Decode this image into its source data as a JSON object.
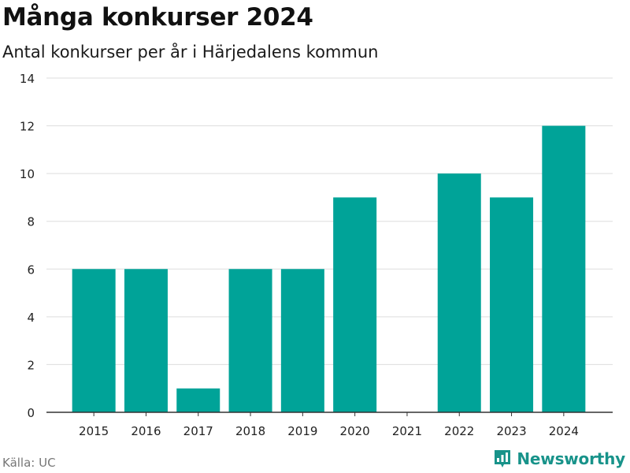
{
  "header": {
    "title": "Många konkurser 2024",
    "subtitle": "Antal konkurser per år i Härjedalens kommun"
  },
  "footer": {
    "source": "Källa: UC",
    "brand_name": "Newsworthy",
    "brand_icon": "newsworthy-logo-icon"
  },
  "colors": {
    "bar": "#00a398",
    "grid": "#dddddd",
    "axis": "#333333",
    "brand": "#18938a"
  },
  "chart_data": {
    "type": "bar",
    "title": "Många konkurser 2024",
    "subtitle": "Antal konkurser per år i Härjedalens kommun",
    "categories": [
      "2015",
      "2016",
      "2017",
      "2018",
      "2019",
      "2020",
      "2021",
      "2022",
      "2023",
      "2024"
    ],
    "values": [
      6,
      6,
      1,
      6,
      6,
      9,
      0,
      10,
      9,
      12
    ],
    "xlabel": "",
    "ylabel": "",
    "ylim": [
      0,
      14
    ],
    "yticks": [
      0,
      2,
      4,
      6,
      8,
      10,
      12,
      14
    ],
    "grid": true,
    "legend": "none"
  }
}
